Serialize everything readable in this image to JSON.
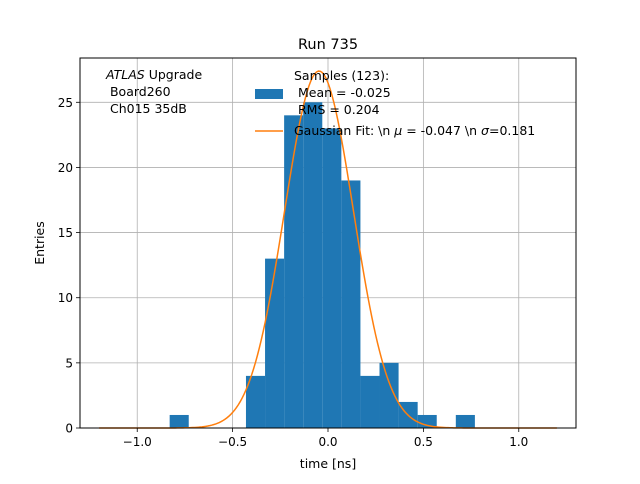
{
  "chart_data": {
    "type": "bar",
    "title": "Run 735",
    "xlabel": "time [ns]",
    "ylabel": "Entries",
    "xlim": [
      -1.3,
      1.3
    ],
    "ylim": [
      0,
      28.4
    ],
    "xticks": [
      -1.0,
      -0.5,
      0.0,
      0.5,
      1.0
    ],
    "xtick_labels": [
      "−1.0",
      "−0.5",
      "0.0",
      "0.5",
      "1.0"
    ],
    "yticks": [
      0,
      5,
      10,
      15,
      20,
      25
    ],
    "ytick_labels": [
      "0",
      "5",
      "10",
      "15",
      "20",
      "25"
    ],
    "grid": true,
    "legend_placement": "top-right",
    "annotation": {
      "italic": "ATLAS",
      "rest": " Upgrade",
      "line2": " Board260",
      "line3": " Ch015 35dB"
    },
    "histogram": {
      "name": "Samples (123):",
      "legend_lines": [
        "Samples (123):",
        " Mean = -0.025",
        " RMS = 0.204"
      ],
      "color": "#1f77b4",
      "bins": [
        {
          "x0": -0.83,
          "x1": -0.73,
          "count": 1
        },
        {
          "x0": -0.43,
          "x1": -0.33,
          "count": 4
        },
        {
          "x0": -0.33,
          "x1": -0.23,
          "count": 13
        },
        {
          "x0": -0.23,
          "x1": -0.13,
          "count": 24
        },
        {
          "x0": -0.13,
          "x1": -0.03,
          "count": 25
        },
        {
          "x0": -0.03,
          "x1": 0.07,
          "count": 23
        },
        {
          "x0": 0.07,
          "x1": 0.17,
          "count": 19
        },
        {
          "x0": 0.17,
          "x1": 0.27,
          "count": 4
        },
        {
          "x0": 0.27,
          "x1": 0.37,
          "count": 5
        },
        {
          "x0": 0.37,
          "x1": 0.47,
          "count": 2
        },
        {
          "x0": 0.47,
          "x1": 0.57,
          "count": 1
        },
        {
          "x0": 0.67,
          "x1": 0.77,
          "count": 1
        }
      ]
    },
    "fit": {
      "legend_prefix": "Gaussian Fit: \\n ",
      "mu_symbol": "μ",
      "mu_text": " = -0.047 \\n ",
      "sigma_symbol": "σ",
      "sigma_text": "=0.181",
      "color": "#ff7f0e",
      "mu": -0.047,
      "sigma": 0.181,
      "amplitude": 27.4
    }
  }
}
